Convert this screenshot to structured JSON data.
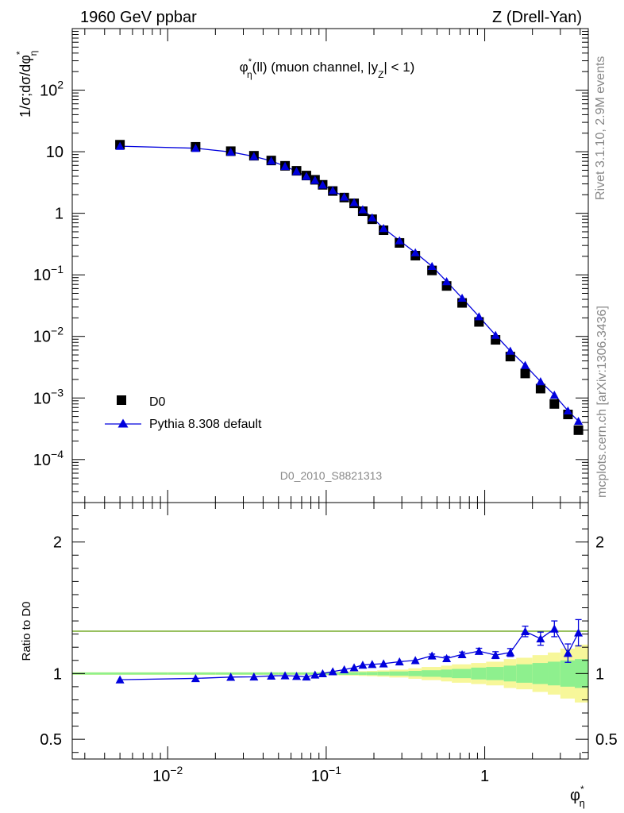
{
  "header": {
    "left": "1960 GeV ppbar",
    "right": "Z (Drell-Yan)"
  },
  "side_labels": {
    "version": "Rivet 3.1.10,  2.9M events",
    "source": "mcplots.cern.ch [arXiv:1306.3436]"
  },
  "watermark": "D0_2010_S8821313",
  "colors": {
    "mc": "#0000dd",
    "data": "#000000",
    "band_inner": "#8ef08e",
    "band_outer": "#f7f79a",
    "ratio_line": "#5a9a00"
  },
  "chart_data": [
    {
      "type": "scatter",
      "title": "φ*η(ll) (muon channel, |yZ| < 1)",
      "title_parts": {
        "pre": "φ",
        "sup": "*",
        "sub": "η",
        "mid": "(ll) (muon channel, |y",
        "sub2": "Z",
        "post": "| < 1)"
      },
      "ylabel": "1/σ;dσ/dφ*η",
      "ylabel_parts": {
        "pre": "1/σ;dσ/dφ",
        "sup": "*",
        "sub": "η"
      },
      "xscale": "log",
      "yscale": "log",
      "xlim": [
        0.0025,
        4.5
      ],
      "ylim": [
        2e-05,
        1000
      ],
      "y_ticks": [
        {
          "v": 0.0001,
          "base": "10",
          "exp": "−4"
        },
        {
          "v": 0.001,
          "base": "10",
          "exp": "−3"
        },
        {
          "v": 0.01,
          "base": "10",
          "exp": "−2"
        },
        {
          "v": 0.1,
          "base": "10",
          "exp": "−1"
        },
        {
          "v": 1,
          "base": "1",
          "exp": ""
        },
        {
          "v": 10,
          "base": "10",
          "exp": ""
        },
        {
          "v": 100,
          "base": "10",
          "exp": "2"
        }
      ],
      "legend": {
        "position": "bottom-left",
        "entries": [
          {
            "label": "D0",
            "marker": "square"
          },
          {
            "label": "Pythia 8.308 default",
            "marker": "triangle"
          }
        ]
      },
      "x": [
        0.005,
        0.015,
        0.025,
        0.035,
        0.045,
        0.055,
        0.065,
        0.075,
        0.085,
        0.095,
        0.11,
        0.13,
        0.15,
        0.17,
        0.195,
        0.23,
        0.29,
        0.365,
        0.465,
        0.575,
        0.72,
        0.92,
        1.17,
        1.45,
        1.8,
        2.25,
        2.75,
        3.35,
        3.9
      ],
      "series": [
        {
          "name": "D0",
          "values": [
            13.0,
            12.0,
            10.2,
            8.6,
            7.2,
            5.9,
            4.9,
            4.1,
            3.5,
            2.9,
            2.3,
            1.8,
            1.45,
            1.08,
            0.8,
            0.53,
            0.33,
            0.205,
            0.118,
            0.066,
            0.035,
            0.0172,
            0.0088,
            0.0047,
            0.0025,
            0.00142,
            0.0008,
            0.00054,
            0.0003
          ]
        },
        {
          "name": "Pythia 8.308 default",
          "values": [
            12.3,
            11.4,
            9.9,
            8.4,
            7.1,
            5.8,
            4.8,
            4.0,
            3.45,
            2.9,
            2.35,
            1.85,
            1.5,
            1.15,
            0.85,
            0.57,
            0.36,
            0.23,
            0.138,
            0.078,
            0.042,
            0.021,
            0.0105,
            0.0058,
            0.0034,
            0.00185,
            0.00112,
            0.00062,
            0.00042
          ]
        }
      ]
    },
    {
      "type": "scatter",
      "ylabel": "Ratio to D0",
      "xlabel": "φ*η",
      "xlabel_parts": {
        "pre": "φ",
        "sup": "*",
        "sub": "η"
      },
      "xscale": "log",
      "xlim": [
        0.0025,
        4.5
      ],
      "ylim": [
        0.35,
        2.3
      ],
      "y_ticks": [
        {
          "v": 0.5,
          "label": "0.5"
        },
        {
          "v": 1,
          "label": "1"
        },
        {
          "v": 2,
          "label": "2"
        }
      ],
      "x_ticks": [
        {
          "v": 0.01,
          "base": "10",
          "exp": "−2"
        },
        {
          "v": 0.1,
          "base": "10",
          "exp": "−1"
        },
        {
          "v": 1,
          "base": "1",
          "exp": ""
        }
      ],
      "x": [
        0.005,
        0.015,
        0.025,
        0.035,
        0.045,
        0.055,
        0.065,
        0.075,
        0.085,
        0.095,
        0.11,
        0.13,
        0.15,
        0.17,
        0.195,
        0.23,
        0.29,
        0.365,
        0.465,
        0.575,
        0.72,
        0.92,
        1.17,
        1.45,
        1.8,
        2.25,
        2.75,
        3.35,
        3.9
      ],
      "x_edges": [
        0.0025,
        0.01,
        0.02,
        0.03,
        0.04,
        0.05,
        0.06,
        0.07,
        0.08,
        0.09,
        0.1,
        0.12,
        0.14,
        0.16,
        0.18,
        0.21,
        0.25,
        0.33,
        0.4,
        0.53,
        0.62,
        0.82,
        1.02,
        1.32,
        1.58,
        2.0,
        2.5,
        3.0,
        3.7,
        4.5
      ],
      "band_inner": [
        0.008,
        0.008,
        0.008,
        0.008,
        0.008,
        0.008,
        0.008,
        0.008,
        0.008,
        0.009,
        0.009,
        0.01,
        0.01,
        0.011,
        0.012,
        0.014,
        0.016,
        0.02,
        0.025,
        0.03,
        0.035,
        0.045,
        0.05,
        0.06,
        0.07,
        0.08,
        0.09,
        0.1,
        0.11
      ],
      "band_outer": [
        0.01,
        0.01,
        0.01,
        0.01,
        0.01,
        0.01,
        0.01,
        0.01,
        0.01,
        0.012,
        0.013,
        0.015,
        0.016,
        0.018,
        0.02,
        0.024,
        0.03,
        0.04,
        0.05,
        0.06,
        0.07,
        0.08,
        0.09,
        0.11,
        0.12,
        0.14,
        0.16,
        0.19,
        0.22
      ],
      "series": [
        {
          "name": "Pythia 8.308 default",
          "values": [
            0.953,
            0.963,
            0.973,
            0.975,
            0.982,
            0.984,
            0.98,
            0.975,
            0.99,
            1.0,
            1.015,
            1.03,
            1.045,
            1.065,
            1.07,
            1.075,
            1.09,
            1.1,
            1.135,
            1.115,
            1.145,
            1.17,
            1.14,
            1.16,
            1.32,
            1.265,
            1.34,
            1.155,
            1.31
          ],
          "errors": [
            0.005,
            0.005,
            0.005,
            0.005,
            0.005,
            0.005,
            0.005,
            0.006,
            0.006,
            0.006,
            0.006,
            0.007,
            0.007,
            0.008,
            0.008,
            0.009,
            0.01,
            0.011,
            0.013,
            0.015,
            0.018,
            0.022,
            0.026,
            0.03,
            0.04,
            0.05,
            0.06,
            0.07,
            0.1
          ]
        }
      ]
    }
  ]
}
